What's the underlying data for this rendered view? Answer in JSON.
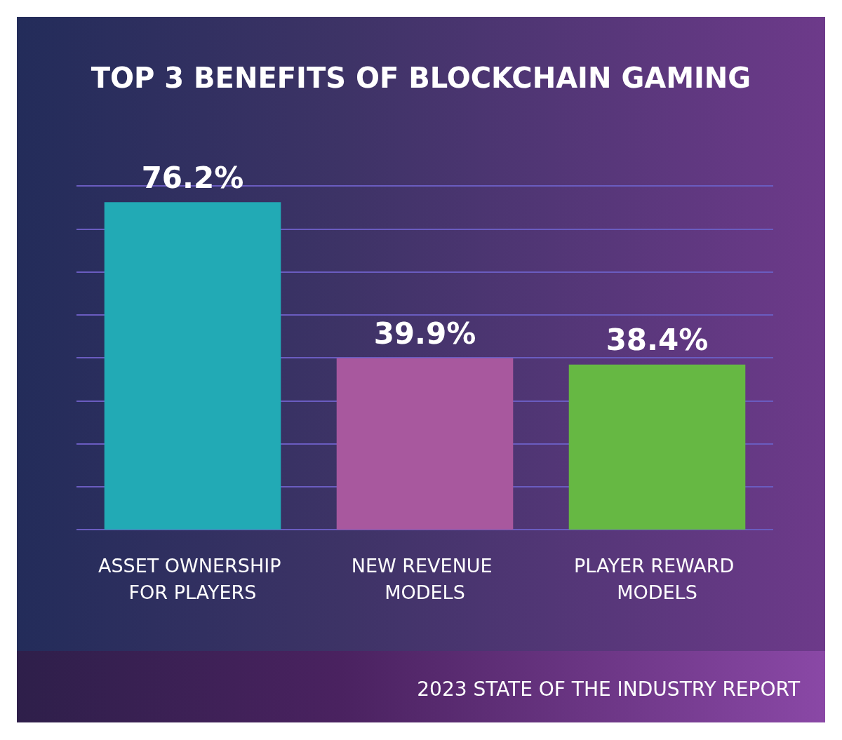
{
  "chart_data": {
    "type": "bar",
    "title": "TOP 3 BENEFITS OF BLOCKCHAIN GAMING",
    "categories": [
      "ASSET OWNERSHIP FOR PLAYERS",
      "NEW REVENUE MODELS",
      "PLAYER REWARD MODELS"
    ],
    "values": [
      76.2,
      39.9,
      38.4
    ],
    "colors": [
      "#22aab5",
      "#a8589e",
      "#66b843"
    ],
    "value_labels": [
      "76.2%",
      "39.9%",
      "38.4%"
    ],
    "ylim": [
      0,
      80
    ],
    "yticks": [
      {
        "value": 0,
        "label": null
      },
      {
        "value": 10,
        "label": null
      },
      {
        "value": 20,
        "label": null
      },
      {
        "value": 30,
        "label": null
      },
      {
        "value": 40,
        "label": null
      },
      {
        "value": 50,
        "label": null
      },
      {
        "value": 60,
        "label": null
      },
      {
        "value": 70,
        "label": null
      },
      {
        "value": 80,
        "label": null
      }
    ],
    "grid": "y",
    "tick_labels": "x",
    "annotations": [
      "2023 STATE OF THE INDUSTRY REPORT"
    ]
  }
}
